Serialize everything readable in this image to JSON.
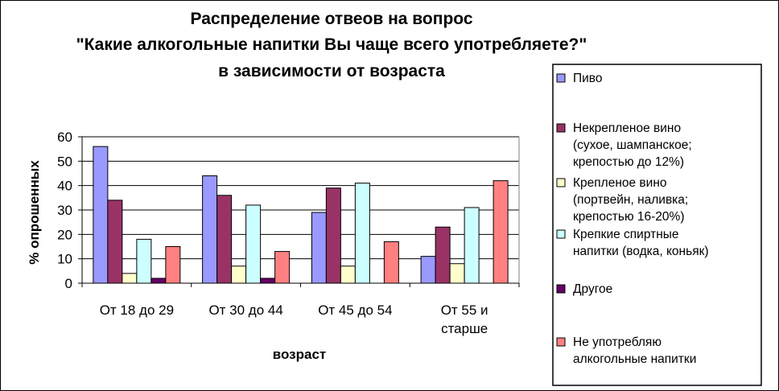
{
  "chart_data": {
    "type": "bar",
    "title": [
      "Распределение отвеов на вопрос",
      "\"Какие алкогольные напитки Вы чаще всего употребляете?\"",
      "в зависимости от возраста"
    ],
    "xlabel": "возраст",
    "ylabel": "% опрошенных",
    "ylim": [
      0,
      60
    ],
    "yticks": [
      "0",
      "10",
      "20",
      "30",
      "40",
      "50",
      "60"
    ],
    "categories": [
      [
        "От 18 до 29"
      ],
      [
        "От 30 до 44"
      ],
      [
        "От 45 до 54"
      ],
      [
        "От 55 и",
        "старше"
      ]
    ],
    "grid": "horizontal",
    "legend_position": "right",
    "series": [
      {
        "name": [
          "Пиво"
        ],
        "color": "#9999ff",
        "values": [
          56,
          44,
          29,
          11
        ]
      },
      {
        "name": [
          "Некрепленое вино",
          "(сухое, шампанское;",
          "крепостью до 12%)"
        ],
        "color": "#993366",
        "values": [
          34,
          36,
          39,
          23
        ]
      },
      {
        "name": [
          "Крепленое вино",
          "(портвейн, наливка;",
          "крепостью 16-20%)"
        ],
        "color": "#ffffcc",
        "values": [
          4,
          7,
          7,
          8
        ]
      },
      {
        "name": [
          "Крепкие спиртные",
          "напитки (водка, коньяк)"
        ],
        "color": "#ccffff",
        "values": [
          18,
          32,
          41,
          31
        ]
      },
      {
        "name": [
          "Другое"
        ],
        "color": "#660066",
        "values": [
          2,
          2,
          0,
          0
        ]
      },
      {
        "name": [
          "Не употребляю",
          "алкогольные напитки"
        ],
        "color": "#ff8080",
        "values": [
          15,
          13,
          17,
          42
        ]
      }
    ]
  }
}
